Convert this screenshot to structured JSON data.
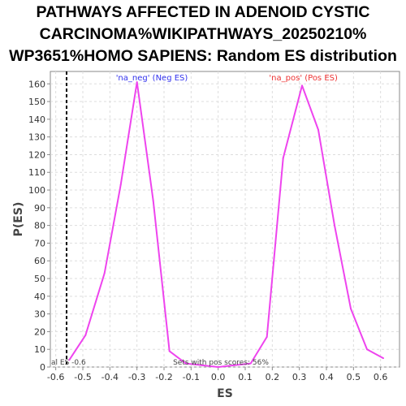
{
  "chart_data": {
    "type": "line",
    "title_lines": [
      "PATHWAYS AFFECTED IN ADENOID CYSTIC",
      "CARCINOMA%WIKIPATHWAYS_20250210%",
      "WP3651%HOMO SAPIENS: Random ES distribution"
    ],
    "xlabel": "ES",
    "ylabel": "P(ES)",
    "xlim": [
      -0.62,
      0.67
    ],
    "ylim": [
      0,
      167
    ],
    "x_ticks": [
      "-0.6",
      "-0.5",
      "-0.4",
      "-0.3",
      "-0.2",
      "-0.1",
      "0.0",
      "0.1",
      "0.2",
      "0.3",
      "0.4",
      "0.5",
      "0.6"
    ],
    "y_ticks": [
      "0",
      "10",
      "20",
      "30",
      "40",
      "50",
      "60",
      "70",
      "80",
      "90",
      "100",
      "110",
      "120",
      "130",
      "140",
      "150",
      "160"
    ],
    "grid": true,
    "series": [
      {
        "color": "#ee44ee",
        "x": [
          -0.55,
          -0.49,
          -0.42,
          -0.36,
          -0.3,
          -0.24,
          -0.18,
          -0.12,
          -0.06,
          0.0,
          0.06,
          0.12,
          0.18,
          0.24,
          0.31,
          0.37,
          0.43,
          0.49,
          0.55,
          0.61
        ],
        "y": [
          4,
          18,
          53,
          103,
          161,
          94,
          9,
          2,
          1,
          0,
          1,
          2,
          17,
          118,
          159,
          134,
          80,
          33,
          10,
          5
        ]
      }
    ],
    "annotations": {
      "neg_label": "'na_neg' (Neg ES)",
      "neg_color": "#3333ee",
      "pos_label": "'na_pos' (Pos ES)",
      "pos_color": "#ee3333",
      "actual_es": -0.56,
      "actual_es_label": "al ES -0.6",
      "pos_scores_text": "Sets with pos scores: 56%"
    }
  }
}
